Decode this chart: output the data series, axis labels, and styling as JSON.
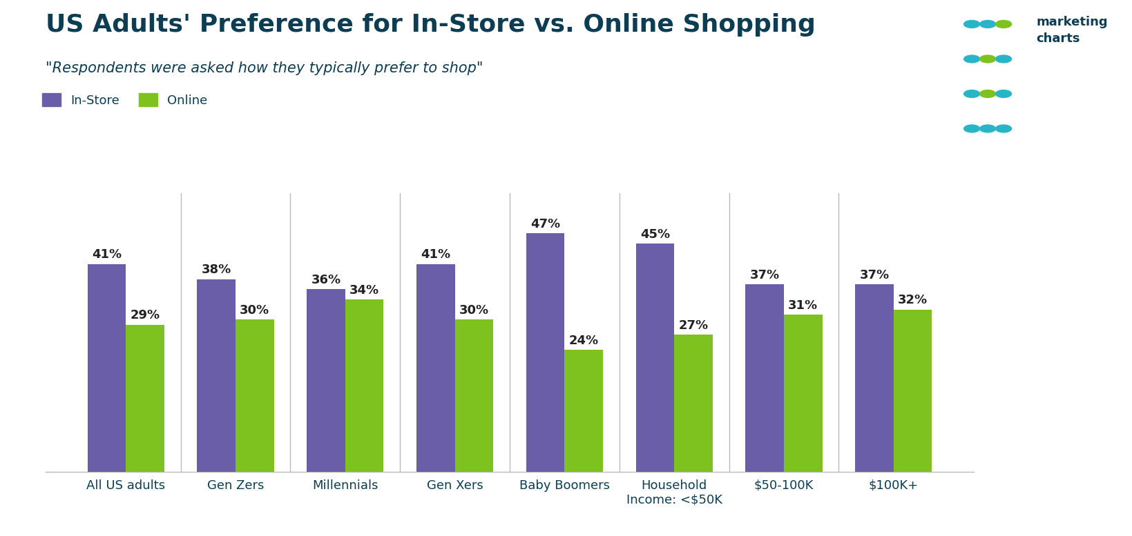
{
  "title": "US Adults' Preference for In-Store vs. Online Shopping",
  "subtitle": "\"Respondents were asked how they typically prefer to shop\"",
  "title_color": "#0d3d52",
  "subtitle_color": "#0d3d52",
  "categories": [
    "All US adults",
    "Gen Zers",
    "Millennials",
    "Gen Xers",
    "Baby Boomers",
    "Household\nIncome: <$50K",
    "$50-100K",
    "$100K+"
  ],
  "instore": [
    41,
    38,
    36,
    41,
    47,
    45,
    37,
    37
  ],
  "online": [
    29,
    30,
    34,
    30,
    24,
    27,
    31,
    32
  ],
  "instore_color": "#6b5ea8",
  "online_color": "#7dc21e",
  "bar_width": 0.35,
  "ylim": [
    0,
    55
  ],
  "legend_instore": "In-Store",
  "legend_online": "Online",
  "bg_color": "#ffffff",
  "title_fontsize": 26,
  "subtitle_fontsize": 15,
  "tick_fontsize": 13,
  "legend_fontsize": 13,
  "value_fontsize": 13,
  "logo_dot_colors": [
    [
      "#29b5c8",
      "#29b5c8",
      "#7dc21e"
    ],
    [
      "#29b5c8",
      "#7dc21e",
      "#29b5c8"
    ],
    [
      "#29b5c8",
      "#7dc21e",
      "#29b5c8"
    ],
    [
      "#29b5c8",
      "#29b5c8",
      "#29b5c8"
    ]
  ]
}
